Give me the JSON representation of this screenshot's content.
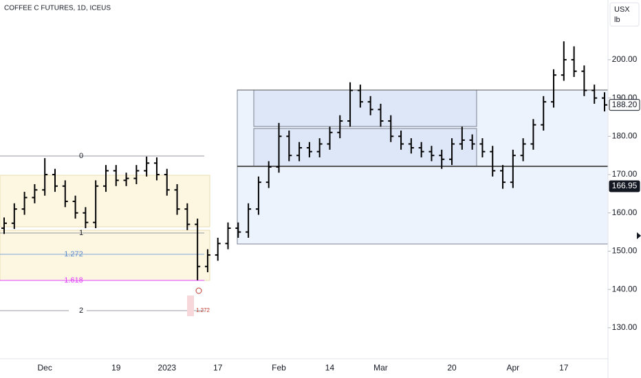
{
  "chart_data": {
    "type": "ohlc",
    "title": "COFFEE C FUTURES, 1D, ICEUS",
    "unit": [
      "USX",
      "lb"
    ],
    "color": "#000000",
    "categories": [
      null,
      null,
      null,
      null,
      "Dec",
      null,
      null,
      null,
      null,
      null,
      null,
      "19",
      null,
      null,
      null,
      null,
      "2023",
      null,
      null,
      null,
      null,
      "17",
      null,
      null,
      null,
      null,
      null,
      "Feb",
      null,
      null,
      null,
      null,
      "14",
      null,
      null,
      null,
      null,
      "Mar",
      null,
      null,
      null,
      null,
      null,
      null,
      "20",
      null,
      null,
      null,
      null,
      null,
      "Apr",
      null,
      null,
      null,
      null,
      "17",
      null,
      null,
      null,
      null
    ],
    "open": [
      156,
      157.3,
      161,
      164,
      166,
      170,
      167,
      163,
      160,
      157.5,
      167,
      171,
      168.5,
      169,
      171,
      173,
      170,
      166,
      161,
      157,
      146,
      149,
      152,
      156,
      155,
      161,
      168,
      172,
      180,
      175,
      177,
      176,
      178,
      181,
      184,
      192,
      189,
      187,
      184,
      180,
      178,
      177,
      176,
      175,
      174,
      178,
      179,
      178,
      176,
      171,
      168,
      175,
      178,
      183,
      189,
      196,
      200,
      197,
      192,
      190
    ],
    "high": [
      158.8,
      162.5,
      165.5,
      167.5,
      174.3,
      171.5,
      168.5,
      164.5,
      161.5,
      168.5,
      172.5,
      172.5,
      170.5,
      172.5,
      174.7,
      174.5,
      171.5,
      167.5,
      162.5,
      158.5,
      150.5,
      153.5,
      157.5,
      157.5,
      162.5,
      169.5,
      173.5,
      183.5,
      181.5,
      178.5,
      178.5,
      179.5,
      182.5,
      185.5,
      194.1,
      193.5,
      190.5,
      188.5,
      185.5,
      181.5,
      179.5,
      178.5,
      177.5,
      176.5,
      179.5,
      182.5,
      180.5,
      179.5,
      177.5,
      172.5,
      176.5,
      179.5,
      184.5,
      190.5,
      197.5,
      204.8,
      203.5,
      198.5,
      193.5,
      191.5
    ],
    "low": [
      154.5,
      155.8,
      159.5,
      162.5,
      164.5,
      165.5,
      161.5,
      158.5,
      156,
      156,
      165.5,
      167,
      167,
      167.5,
      169.5,
      168.5,
      164.5,
      159.5,
      155.5,
      142.4,
      144.5,
      147.5,
      150.5,
      153.5,
      153.5,
      159.5,
      166.5,
      170.5,
      173.5,
      173.5,
      174.5,
      174.5,
      176.5,
      179.5,
      182.5,
      187.5,
      185.5,
      182.5,
      178.5,
      176.5,
      175.5,
      174.5,
      173.5,
      171.5,
      172.5,
      176.5,
      176.5,
      174.5,
      169.5,
      166.3,
      166.5,
      173.5,
      176.5,
      181.5,
      187.5,
      194.5,
      195.5,
      190.5,
      188.5,
      186.5
    ],
    "close": [
      157.3,
      161,
      164,
      166,
      170,
      167,
      163,
      160,
      157.5,
      167,
      171,
      168.5,
      169,
      171,
      173,
      170,
      166,
      161,
      157,
      146,
      149,
      152,
      156,
      155,
      161,
      168,
      172,
      180,
      175,
      177,
      176,
      178,
      181,
      184,
      192,
      189,
      187,
      184,
      180,
      178,
      177,
      176,
      175,
      174,
      178,
      179,
      178,
      176,
      171,
      168,
      175,
      178,
      183,
      189,
      196,
      200,
      197,
      192,
      190,
      188.2
    ],
    "ylim": [
      121.9,
      215.6
    ],
    "yticks": [
      {
        "value": 130,
        "label": "130.00"
      },
      {
        "value": 140,
        "label": "140.00"
      },
      {
        "value": 150,
        "label": "150.00"
      },
      {
        "value": 160,
        "label": "160.00"
      },
      {
        "value": 170,
        "label": "170.00"
      },
      {
        "value": 180,
        "label": "180.00"
      },
      {
        "value": 190,
        "label": "190.00"
      },
      {
        "value": 200,
        "label": "200.00"
      }
    ],
    "price_labels": [
      {
        "value": 188.2,
        "label": "188.20"
      },
      {
        "value": 166.95,
        "label": "166.95"
      }
    ],
    "annotations": [
      "0",
      "1",
      "1.272",
      "1.618",
      "2",
      "1.272"
    ]
  }
}
